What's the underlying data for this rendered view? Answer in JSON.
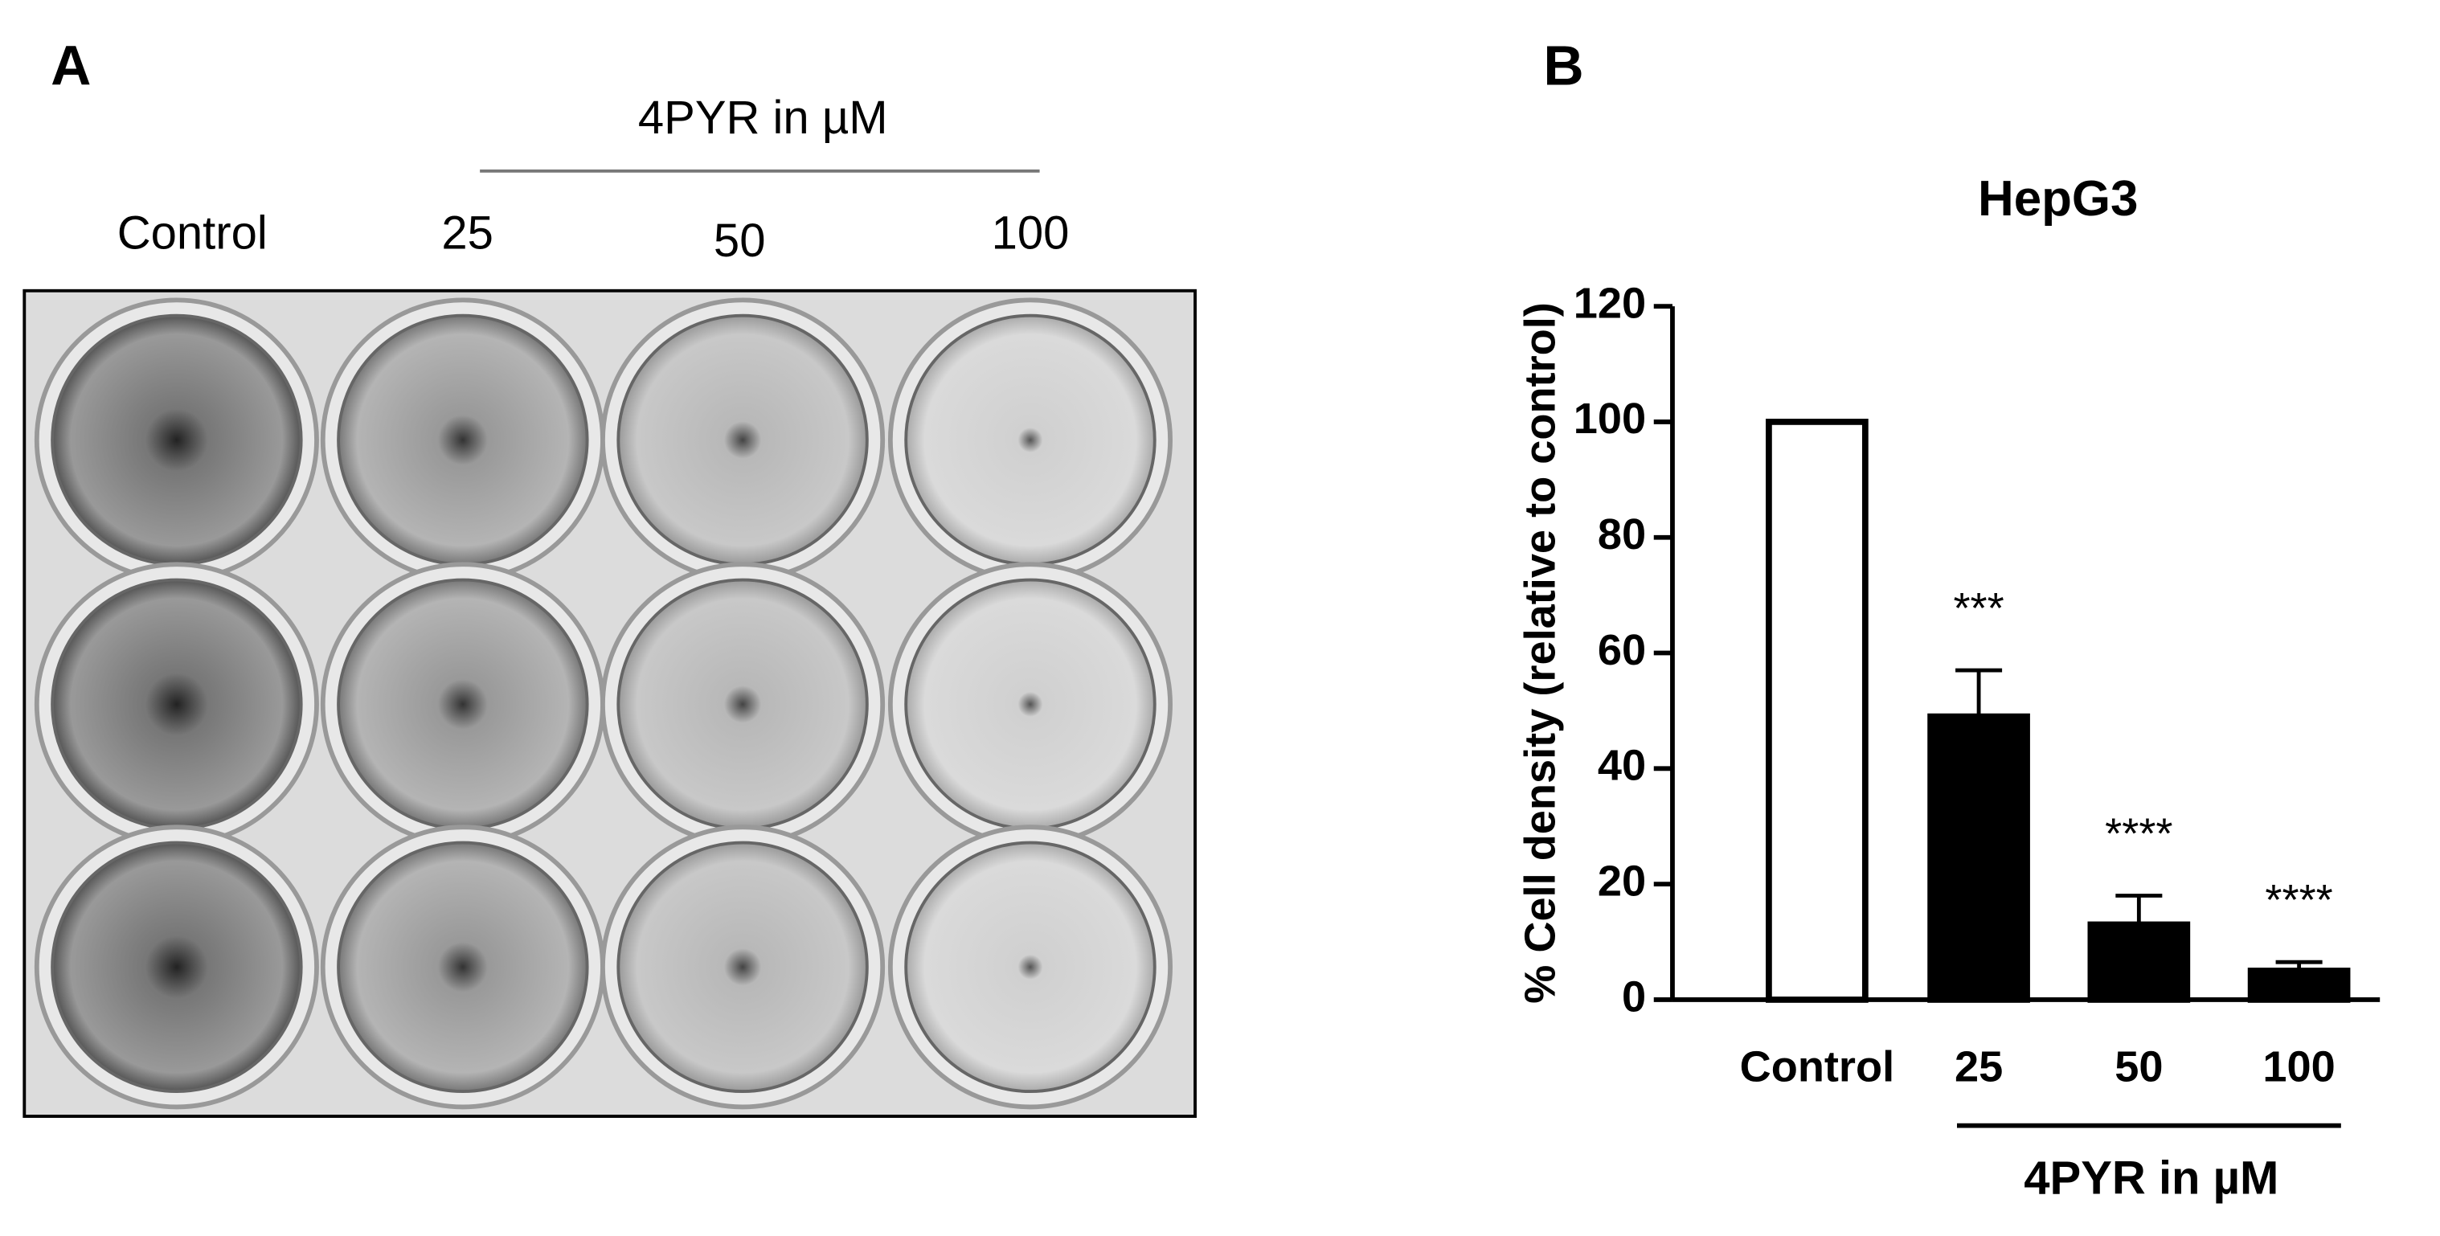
{
  "panel_a": {
    "panel_label": "A",
    "header": "4PYR in µM",
    "columns": [
      "Control",
      "25",
      "50",
      "100"
    ]
  },
  "chart_data": {
    "type": "bar",
    "panel_label": "B",
    "title": "HepG3",
    "y_label": "% Cell density (relative to control)",
    "x_label": "4PYR in µM",
    "categories": [
      "Control",
      "25",
      "50",
      "100"
    ],
    "values": [
      100,
      49,
      13,
      5
    ],
    "errors": [
      null,
      8,
      5,
      1.5
    ],
    "annotations": [
      null,
      "***",
      "****",
      "****"
    ],
    "colors": [
      "#ffffff",
      "#000000",
      "#000000",
      "#000000"
    ],
    "edgecolor": "#000000",
    "ylim": [
      0,
      120
    ],
    "yticks": [
      0,
      20,
      40,
      60,
      80,
      100,
      120
    ]
  }
}
